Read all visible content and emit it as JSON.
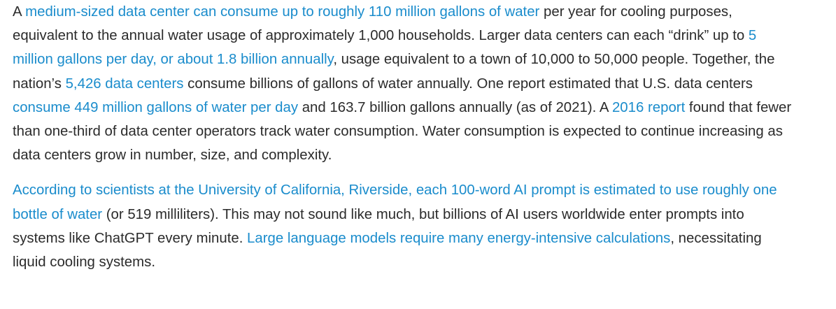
{
  "article": {
    "paragraphs": [
      {
        "segments": [
          {
            "type": "text",
            "text": "A "
          },
          {
            "type": "link",
            "text": "medium-sized data center can consume up to roughly 110 million gallons of water"
          },
          {
            "type": "text",
            "text": " per year for cooling purposes, equivalent to the annual water usage of approximately 1,000 households. Larger data centers can each “drink” up to "
          },
          {
            "type": "link",
            "text": "5 million gallons per day, or about 1.8 billion annually"
          },
          {
            "type": "text",
            "text": ", usage equivalent to a town of 10,000 to 50,000 people. Together, the nation’s "
          },
          {
            "type": "link",
            "text": "5,426 data centers"
          },
          {
            "type": "text",
            "text": " consume billions of gallons of water annually. One report estimated that U.S. data centers "
          },
          {
            "type": "link",
            "text": "consume 449 million gallons of water per day"
          },
          {
            "type": "text",
            "text": " and 163.7 billion gallons annually (as of 2021). A "
          },
          {
            "type": "link",
            "text": "2016 report"
          },
          {
            "type": "text",
            "text": " found that fewer than one-third of data center operators track water consumption. Water consumption is expected to continue increasing as data centers grow in number, size, and complexity."
          }
        ]
      },
      {
        "segments": [
          {
            "type": "link",
            "text": "According to scientists at the University of California, Riverside, each 100-word AI prompt is estimated to use roughly one bottle of water"
          },
          {
            "type": "text",
            "text": " (or 519 milliliters). This may not sound like much, but billions of AI users worldwide enter prompts into systems like ChatGPT every minute. "
          },
          {
            "type": "link",
            "text": "Large language models require many energy-intensive calculations"
          },
          {
            "type": "text",
            "text": ", necessitating liquid cooling systems."
          }
        ]
      }
    ]
  }
}
